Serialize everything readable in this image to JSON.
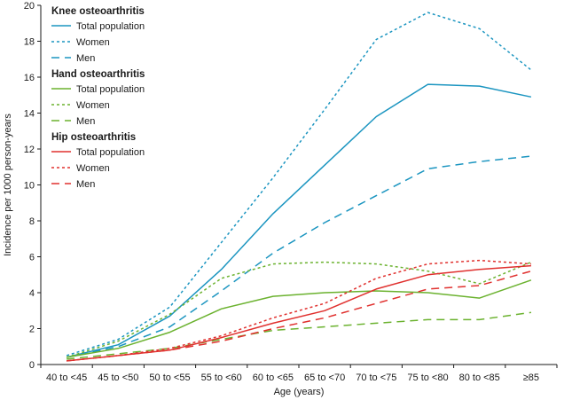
{
  "chart_data": {
    "type": "line",
    "xlabel": "Age (years)",
    "ylabel": "Incidence per 1000 person-years",
    "ylim": [
      0,
      20
    ],
    "yticks": [
      "0",
      "2",
      "4",
      "6",
      "8",
      "10",
      "12",
      "14",
      "16",
      "18",
      "20"
    ],
    "categories": [
      "40 to <45",
      "45 to <50",
      "50 to <55",
      "55 to <60",
      "60 to <65",
      "65 to <70",
      "70 to <75",
      "75 to <80",
      "80 to <85",
      "≥85"
    ],
    "grid": false,
    "legend_position": "top-left",
    "groups": [
      {
        "heading": "Knee osteoarthritis",
        "color": "#1b95c0",
        "series": [
          {
            "name": "Total population",
            "style": "solid",
            "values": [
              0.4,
              1.1,
              2.7,
              5.3,
              8.4,
              11.1,
              13.8,
              15.6,
              15.5,
              14.9
            ]
          },
          {
            "name": "Women",
            "style": "dotted",
            "values": [
              0.5,
              1.4,
              3.2,
              6.8,
              10.4,
              14.2,
              18.1,
              19.6,
              18.7,
              16.4
            ]
          },
          {
            "name": "Men",
            "style": "dashed",
            "values": [
              0.4,
              1.0,
              2.1,
              4.1,
              6.2,
              7.9,
              9.4,
              10.9,
              11.3,
              11.6
            ]
          }
        ]
      },
      {
        "heading": "Hand osteoarthritis",
        "color": "#6bb22f",
        "series": [
          {
            "name": "Total population",
            "style": "solid",
            "values": [
              0.4,
              0.9,
              1.8,
              3.1,
              3.8,
              4.0,
              4.1,
              4.0,
              3.7,
              4.7
            ]
          },
          {
            "name": "Women",
            "style": "dotted",
            "values": [
              0.4,
              1.3,
              2.8,
              4.8,
              5.6,
              5.7,
              5.6,
              5.2,
              4.5,
              5.7
            ]
          },
          {
            "name": "Men",
            "style": "dashed",
            "values": [
              0.3,
              0.6,
              0.9,
              1.4,
              1.9,
              2.1,
              2.3,
              2.5,
              2.5,
              2.9
            ]
          }
        ]
      },
      {
        "heading": "Hip osteoarthritis",
        "color": "#e0302e",
        "series": [
          {
            "name": "Total population",
            "style": "solid",
            "values": [
              0.2,
              0.5,
              0.8,
              1.5,
              2.3,
              3.0,
              4.2,
              5.0,
              5.3,
              5.5
            ]
          },
          {
            "name": "Women",
            "style": "dotted",
            "values": [
              0.2,
              0.5,
              0.9,
              1.6,
              2.6,
              3.4,
              4.8,
              5.6,
              5.8,
              5.6
            ]
          },
          {
            "name": "Men",
            "style": "dashed",
            "values": [
              0.2,
              0.5,
              0.8,
              1.3,
              2.0,
              2.6,
              3.4,
              4.2,
              4.4,
              5.2
            ]
          }
        ]
      }
    ]
  }
}
